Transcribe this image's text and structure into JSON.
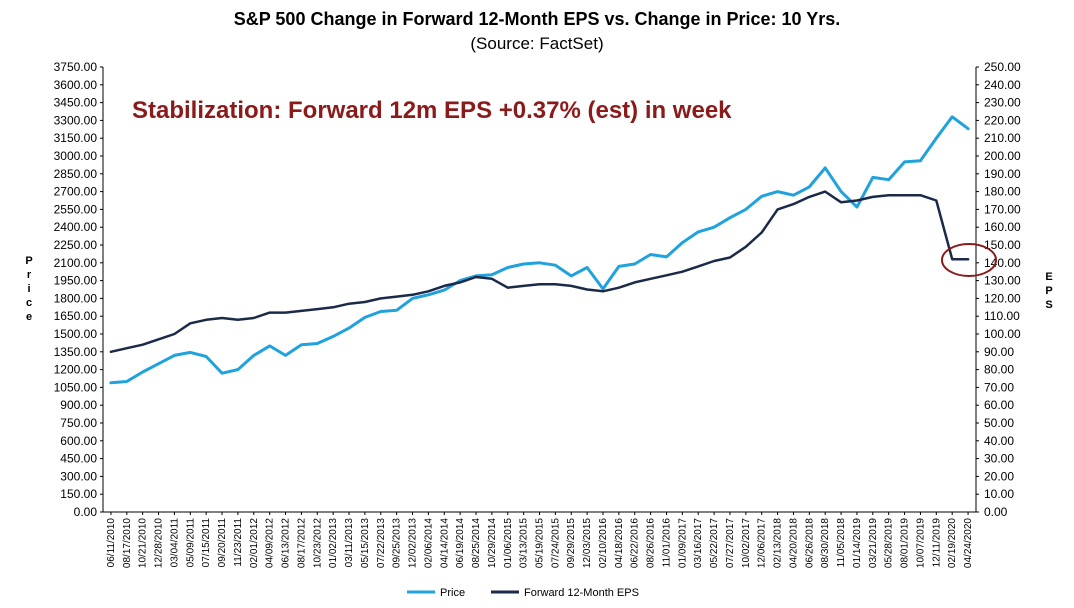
{
  "chart_data": {
    "type": "line",
    "title": "S&P 500 Change in Forward 12-Month EPS vs. Change in Price: 10 Yrs.",
    "subtitle": "(Source: FactSet)",
    "annotation": "Stabilization: Forward 12m EPS +0.37% (est) in week",
    "ylabel_left": "Price",
    "ylabel_right": "EPS",
    "ylim_left": [
      0,
      3750
    ],
    "ylim_right": [
      0,
      250
    ],
    "yticks_left": [
      "0.00",
      "150.00",
      "300.00",
      "450.00",
      "600.00",
      "750.00",
      "900.00",
      "1050.00",
      "1200.00",
      "1350.00",
      "1500.00",
      "1650.00",
      "1800.00",
      "1950.00",
      "2100.00",
      "2250.00",
      "2400.00",
      "2550.00",
      "2700.00",
      "2850.00",
      "3000.00",
      "3150.00",
      "3300.00",
      "3450.00",
      "3600.00",
      "3750.00"
    ],
    "yticks_right": [
      "0.00",
      "10.00",
      "20.00",
      "30.00",
      "40.00",
      "50.00",
      "60.00",
      "70.00",
      "80.00",
      "90.00",
      "100.00",
      "110.00",
      "120.00",
      "130.00",
      "140.00",
      "150.00",
      "160.00",
      "170.00",
      "180.00",
      "190.00",
      "200.00",
      "210.00",
      "220.00",
      "230.00",
      "240.00",
      "250.00"
    ],
    "x_labels": [
      "06/11/2010",
      "08/17/2010",
      "10/21/2010",
      "12/28/2010",
      "03/04/2011",
      "05/09/2011",
      "07/15/2011",
      "09/20/2011",
      "11/23/2011",
      "02/01/2012",
      "04/09/2012",
      "06/13/2012",
      "08/17/2012",
      "10/23/2012",
      "01/02/2013",
      "03/11/2013",
      "05/15/2013",
      "07/22/2013",
      "09/25/2013",
      "12/02/2013",
      "02/06/2014",
      "04/14/2014",
      "06/19/2014",
      "08/25/2014",
      "10/29/2014",
      "01/06/2015",
      "03/13/2015",
      "05/19/2015",
      "07/24/2015",
      "09/29/2015",
      "12/03/2015",
      "02/10/2016",
      "04/18/2016",
      "06/22/2016",
      "08/26/2016",
      "11/01/2016",
      "01/09/2017",
      "03/16/2017",
      "05/22/2017",
      "07/27/2017",
      "10/02/2017",
      "12/06/2017",
      "02/13/2018",
      "04/20/2018",
      "06/26/2018",
      "08/30/2018",
      "11/05/2018",
      "01/14/2019",
      "03/21/2019",
      "05/28/2019",
      "08/01/2019",
      "10/07/2019",
      "12/11/2019",
      "02/19/2020",
      "04/24/2020"
    ],
    "series": [
      {
        "name": "Price",
        "axis": "left",
        "color": "#1fa2de",
        "points": [
          [
            0,
            1090
          ],
          [
            1,
            1100
          ],
          [
            2,
            1180
          ],
          [
            3,
            1250
          ],
          [
            4,
            1320
          ],
          [
            5,
            1345
          ],
          [
            6,
            1310
          ],
          [
            7,
            1170
          ],
          [
            8,
            1200
          ],
          [
            9,
            1320
          ],
          [
            10,
            1400
          ],
          [
            11,
            1320
          ],
          [
            12,
            1410
          ],
          [
            13,
            1420
          ],
          [
            14,
            1480
          ],
          [
            15,
            1550
          ],
          [
            16,
            1640
          ],
          [
            17,
            1690
          ],
          [
            18,
            1700
          ],
          [
            19,
            1800
          ],
          [
            20,
            1830
          ],
          [
            21,
            1870
          ],
          [
            22,
            1950
          ],
          [
            23,
            1990
          ],
          [
            24,
            2000
          ],
          [
            25,
            2060
          ],
          [
            26,
            2090
          ],
          [
            27,
            2100
          ],
          [
            28,
            2080
          ],
          [
            29,
            1990
          ],
          [
            30,
            2060
          ],
          [
            31,
            1880
          ],
          [
            32,
            2070
          ],
          [
            33,
            2090
          ],
          [
            34,
            2170
          ],
          [
            35,
            2150
          ],
          [
            36,
            2270
          ],
          [
            37,
            2360
          ],
          [
            38,
            2400
          ],
          [
            39,
            2480
          ],
          [
            40,
            2550
          ],
          [
            41,
            2660
          ],
          [
            42,
            2700
          ],
          [
            43,
            2670
          ],
          [
            44,
            2740
          ],
          [
            45,
            2900
          ],
          [
            46,
            2700
          ],
          [
            47,
            2570
          ],
          [
            48,
            2820
          ],
          [
            49,
            2800
          ],
          [
            50,
            2950
          ],
          [
            51,
            2960
          ],
          [
            52,
            3150
          ],
          [
            53,
            3330
          ],
          [
            54,
            3230
          ]
        ]
      },
      {
        "name": "Forward 12-Month EPS",
        "axis": "right",
        "color": "#1c2a4a",
        "points": [
          [
            0,
            90
          ],
          [
            1,
            92
          ],
          [
            2,
            94
          ],
          [
            3,
            97
          ],
          [
            4,
            100
          ],
          [
            5,
            106
          ],
          [
            6,
            108
          ],
          [
            7,
            109
          ],
          [
            8,
            108
          ],
          [
            9,
            109
          ],
          [
            10,
            112
          ],
          [
            11,
            112
          ],
          [
            12,
            113
          ],
          [
            13,
            114
          ],
          [
            14,
            115
          ],
          [
            15,
            117
          ],
          [
            16,
            118
          ],
          [
            17,
            120
          ],
          [
            18,
            121
          ],
          [
            19,
            122
          ],
          [
            20,
            124
          ],
          [
            21,
            127
          ],
          [
            22,
            129
          ],
          [
            23,
            132
          ],
          [
            24,
            131
          ],
          [
            25,
            126
          ],
          [
            26,
            127
          ],
          [
            27,
            128
          ],
          [
            28,
            128
          ],
          [
            29,
            127
          ],
          [
            30,
            125
          ],
          [
            31,
            124
          ],
          [
            32,
            126
          ],
          [
            33,
            129
          ],
          [
            34,
            131
          ],
          [
            35,
            133
          ],
          [
            36,
            135
          ],
          [
            37,
            138
          ],
          [
            38,
            141
          ],
          [
            39,
            143
          ],
          [
            40,
            149
          ],
          [
            41,
            157
          ],
          [
            42,
            170
          ],
          [
            43,
            173
          ],
          [
            44,
            177
          ],
          [
            45,
            180
          ],
          [
            46,
            174
          ],
          [
            47,
            175
          ],
          [
            48,
            177
          ],
          [
            49,
            178
          ],
          [
            50,
            178
          ],
          [
            51,
            178
          ],
          [
            52,
            175
          ],
          [
            53,
            142
          ],
          [
            54,
            142
          ]
        ]
      }
    ],
    "legend_position": "bottom",
    "grid": false
  }
}
